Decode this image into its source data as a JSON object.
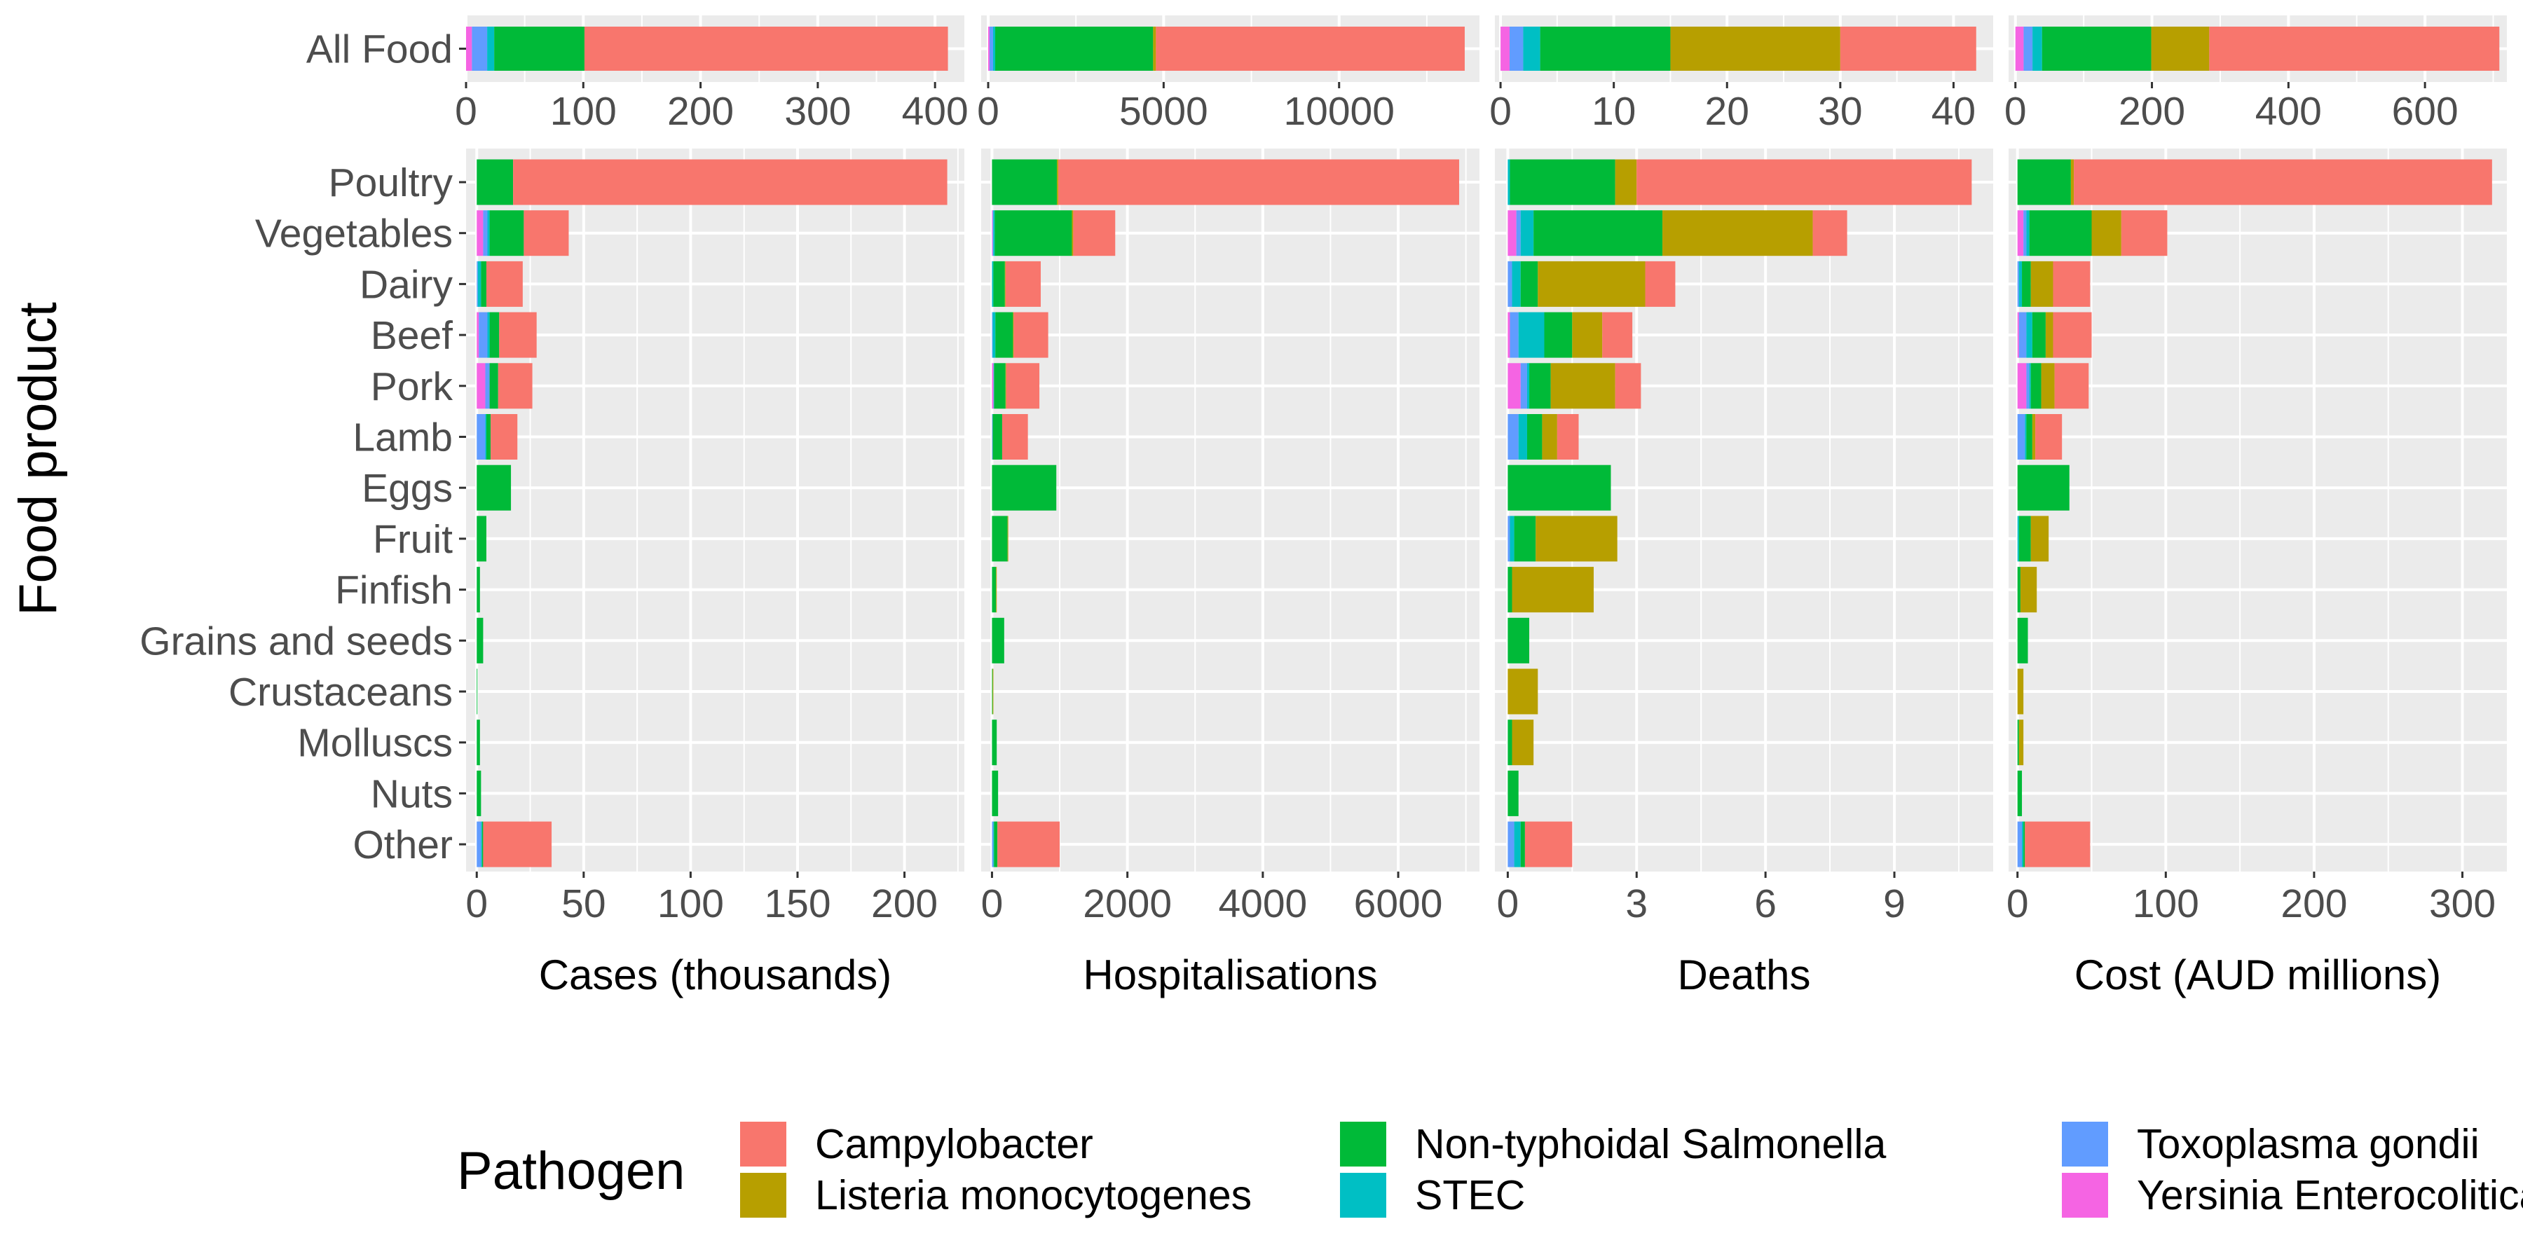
{
  "figure": {
    "y_axis_title": "Food product",
    "legend_title": "Pathogen"
  },
  "pathogens": [
    {
      "name": "Campylobacter",
      "color": "#F8766D"
    },
    {
      "name": "Listeria monocytogenes",
      "color": "#B79F00"
    },
    {
      "name": "Non-typhoidal Salmonella",
      "color": "#00BA38"
    },
    {
      "name": "STEC",
      "color": "#00BFC4"
    },
    {
      "name": "Toxoplasma gondii",
      "color": "#619CFF"
    },
    {
      "name": "Yersinia Enterocolitica",
      "color": "#F564E3"
    }
  ],
  "stack_order": [
    "Yersinia Enterocolitica",
    "Toxoplasma gondii",
    "STEC",
    "Non-typhoidal Salmonella",
    "Listeria monocytogenes",
    "Campylobacter"
  ],
  "legend_layout": [
    [
      "Campylobacter",
      "Non-typhoidal Salmonella",
      "Toxoplasma gondii"
    ],
    [
      "Listeria monocytogenes",
      "STEC",
      "Yersinia Enterocolitica"
    ]
  ],
  "chart_data": {
    "type": "bar",
    "orientation": "horizontal",
    "stacked": true,
    "grid": true,
    "legend_position": "bottom",
    "top_row_category": "All Food",
    "categories": [
      "Poultry",
      "Vegetables",
      "Dairy",
      "Beef",
      "Pork",
      "Lamb",
      "Eggs",
      "Fruit",
      "Finfish",
      "Grains and seeds",
      "Crustaceans",
      "Molluscs",
      "Nuts",
      "Other"
    ],
    "panels": [
      {
        "xlabel": "Cases (thousands)",
        "all_food": {
          "xlim": [
            0,
            425
          ],
          "ticks": [
            0,
            100,
            200,
            300,
            400
          ],
          "values": {
            "Yersinia Enterocolitica": 5,
            "Toxoplasma gondii": 13,
            "STEC": 6,
            "Non-typhoidal Salmonella": 77,
            "Listeria monocytogenes": 0,
            "Campylobacter": 310
          }
        },
        "products": {
          "xlim": [
            -5,
            228
          ],
          "ticks": [
            0,
            50,
            100,
            150,
            200
          ],
          "values": {
            "Poultry": {
              "Yersinia Enterocolitica": 0,
              "Toxoplasma gondii": 0,
              "STEC": 0,
              "Non-typhoidal Salmonella": 17,
              "Listeria monocytogenes": 0,
              "Campylobacter": 203
            },
            "Vegetables": {
              "Yersinia Enterocolitica": 3,
              "Toxoplasma gondii": 2,
              "STEC": 1,
              "Non-typhoidal Salmonella": 16,
              "Listeria monocytogenes": 0,
              "Campylobacter": 21
            },
            "Dairy": {
              "Yersinia Enterocolitica": 0,
              "Toxoplasma gondii": 0.5,
              "STEC": 1.5,
              "Non-typhoidal Salmonella": 2.5,
              "Listeria monocytogenes": 0,
              "Campylobacter": 17
            },
            "Beef": {
              "Yersinia Enterocolitica": 1,
              "Toxoplasma gondii": 4,
              "STEC": 1,
              "Non-typhoidal Salmonella": 4.5,
              "Listeria monocytogenes": 0,
              "Campylobacter": 17.5
            },
            "Pork": {
              "Yersinia Enterocolitica": 4,
              "Toxoplasma gondii": 2,
              "STEC": 0,
              "Non-typhoidal Salmonella": 4,
              "Listeria monocytogenes": 0,
              "Campylobacter": 16
            },
            "Lamb": {
              "Yersinia Enterocolitica": 0,
              "Toxoplasma gondii": 4,
              "STEC": 0.5,
              "Non-typhoidal Salmonella": 2,
              "Listeria monocytogenes": 0,
              "Campylobacter": 12.5
            },
            "Eggs": {
              "Yersinia Enterocolitica": 0,
              "Toxoplasma gondii": 0,
              "STEC": 0,
              "Non-typhoidal Salmonella": 16,
              "Listeria monocytogenes": 0,
              "Campylobacter": 0
            },
            "Fruit": {
              "Yersinia Enterocolitica": 0,
              "Toxoplasma gondii": 0,
              "STEC": 0,
              "Non-typhoidal Salmonella": 4.5,
              "Listeria monocytogenes": 0,
              "Campylobacter": 0
            },
            "Finfish": {
              "Yersinia Enterocolitica": 0,
              "Toxoplasma gondii": 0,
              "STEC": 0,
              "Non-typhoidal Salmonella": 1.5,
              "Listeria monocytogenes": 0,
              "Campylobacter": 0
            },
            "Grains and seeds": {
              "Yersinia Enterocolitica": 0,
              "Toxoplasma gondii": 0,
              "STEC": 0,
              "Non-typhoidal Salmonella": 3,
              "Listeria monocytogenes": 0,
              "Campylobacter": 0
            },
            "Crustaceans": {
              "Yersinia Enterocolitica": 0,
              "Toxoplasma gondii": 0,
              "STEC": 0,
              "Non-typhoidal Salmonella": 0.3,
              "Listeria monocytogenes": 0,
              "Campylobacter": 0
            },
            "Molluscs": {
              "Yersinia Enterocolitica": 0,
              "Toxoplasma gondii": 0,
              "STEC": 0,
              "Non-typhoidal Salmonella": 1.5,
              "Listeria monocytogenes": 0,
              "Campylobacter": 0
            },
            "Nuts": {
              "Yersinia Enterocolitica": 0,
              "Toxoplasma gondii": 0,
              "STEC": 0,
              "Non-typhoidal Salmonella": 2,
              "Listeria monocytogenes": 0,
              "Campylobacter": 0
            },
            "Other": {
              "Yersinia Enterocolitica": 0,
              "Toxoplasma gondii": 2,
              "STEC": 0.5,
              "Non-typhoidal Salmonella": 0.5,
              "Listeria monocytogenes": 0,
              "Campylobacter": 32
            }
          }
        }
      },
      {
        "xlabel": "Hospitalisations",
        "all_food": {
          "xlim": [
            -200,
            14000
          ],
          "ticks": [
            0,
            5000,
            10000
          ],
          "values": {
            "Yersinia Enterocolitica": 40,
            "Toxoplasma gondii": 100,
            "STEC": 60,
            "Non-typhoidal Salmonella": 4500,
            "Listeria monocytogenes": 80,
            "Campylobacter": 8800
          }
        },
        "products": {
          "xlim": [
            -160,
            7200
          ],
          "ticks": [
            0,
            2000,
            4000,
            6000
          ],
          "values": {
            "Poultry": {
              "Yersinia Enterocolitica": 0,
              "Toxoplasma gondii": 0,
              "STEC": 0,
              "Non-typhoidal Salmonella": 960,
              "Listeria monocytogenes": 20,
              "Campylobacter": 5920
            },
            "Vegetables": {
              "Yersinia Enterocolitica": 10,
              "Toxoplasma gondii": 10,
              "STEC": 20,
              "Non-typhoidal Salmonella": 1140,
              "Listeria monocytogenes": 20,
              "Campylobacter": 620
            },
            "Dairy": {
              "Yersinia Enterocolitica": 0,
              "Toxoplasma gondii": 0,
              "STEC": 20,
              "Non-typhoidal Salmonella": 170,
              "Listeria monocytogenes": 10,
              "Campylobacter": 520
            },
            "Beef": {
              "Yersinia Enterocolitica": 0,
              "Toxoplasma gondii": 10,
              "STEC": 40,
              "Non-typhoidal Salmonella": 260,
              "Listeria monocytogenes": 10,
              "Campylobacter": 510
            },
            "Pork": {
              "Yersinia Enterocolitica": 20,
              "Toxoplasma gondii": 10,
              "STEC": 0,
              "Non-typhoidal Salmonella": 170,
              "Listeria monocytogenes": 10,
              "Campylobacter": 490
            },
            "Lamb": {
              "Yersinia Enterocolitica": 0,
              "Toxoplasma gondii": 10,
              "STEC": 0,
              "Non-typhoidal Salmonella": 140,
              "Listeria monocytogenes": 0,
              "Campylobacter": 380
            },
            "Eggs": {
              "Yersinia Enterocolitica": 0,
              "Toxoplasma gondii": 0,
              "STEC": 0,
              "Non-typhoidal Salmonella": 950,
              "Listeria monocytogenes": 0,
              "Campylobacter": 0
            },
            "Fruit": {
              "Yersinia Enterocolitica": 0,
              "Toxoplasma gondii": 0,
              "STEC": 0,
              "Non-typhoidal Salmonella": 230,
              "Listeria monocytogenes": 10,
              "Campylobacter": 0
            },
            "Finfish": {
              "Yersinia Enterocolitica": 0,
              "Toxoplasma gondii": 0,
              "STEC": 0,
              "Non-typhoidal Salmonella": 60,
              "Listeria monocytogenes": 10,
              "Campylobacter": 0
            },
            "Grains and seeds": {
              "Yersinia Enterocolitica": 0,
              "Toxoplasma gondii": 0,
              "STEC": 0,
              "Non-typhoidal Salmonella": 180,
              "Listeria monocytogenes": 0,
              "Campylobacter": 0
            },
            "Crustaceans": {
              "Yersinia Enterocolitica": 0,
              "Toxoplasma gondii": 0,
              "STEC": 0,
              "Non-typhoidal Salmonella": 10,
              "Listeria monocytogenes": 10,
              "Campylobacter": 0
            },
            "Molluscs": {
              "Yersinia Enterocolitica": 0,
              "Toxoplasma gondii": 0,
              "STEC": 0,
              "Non-typhoidal Salmonella": 70,
              "Listeria monocytogenes": 0,
              "Campylobacter": 0
            },
            "Nuts": {
              "Yersinia Enterocolitica": 0,
              "Toxoplasma gondii": 0,
              "STEC": 0,
              "Non-typhoidal Salmonella": 90,
              "Listeria monocytogenes": 0,
              "Campylobacter": 0
            },
            "Other": {
              "Yersinia Enterocolitica": 0,
              "Toxoplasma gondii": 20,
              "STEC": 10,
              "Non-typhoidal Salmonella": 50,
              "Listeria monocytogenes": 0,
              "Campylobacter": 920
            }
          }
        }
      },
      {
        "xlabel": "Deaths",
        "all_food": {
          "xlim": [
            -0.5,
            43.5
          ],
          "ticks": [
            0,
            10,
            20,
            30,
            40
          ],
          "values": {
            "Yersinia Enterocolitica": 0.8,
            "Toxoplasma gondii": 1.2,
            "STEC": 1.5,
            "Non-typhoidal Salmonella": 11.5,
            "Listeria monocytogenes": 15,
            "Campylobacter": 12
          }
        },
        "products": {
          "xlim": [
            -0.3,
            11.3
          ],
          "ticks": [
            0,
            3,
            6,
            9
          ],
          "values": {
            "Poultry": {
              "Yersinia Enterocolitica": 0,
              "Toxoplasma gondii": 0,
              "STEC": 0.05,
              "Non-typhoidal Salmonella": 2.45,
              "Listeria monocytogenes": 0.5,
              "Campylobacter": 7.8
            },
            "Vegetables": {
              "Yersinia Enterocolitica": 0.2,
              "Toxoplasma gondii": 0.1,
              "STEC": 0.3,
              "Non-typhoidal Salmonella": 3,
              "Listeria monocytogenes": 3.5,
              "Campylobacter": 0.8
            },
            "Dairy": {
              "Yersinia Enterocolitica": 0,
              "Toxoplasma gondii": 0.1,
              "STEC": 0.2,
              "Non-typhoidal Salmonella": 0.4,
              "Listeria monocytogenes": 2.5,
              "Campylobacter": 0.7
            },
            "Beef": {
              "Yersinia Enterocolitica": 0.05,
              "Toxoplasma gondii": 0.2,
              "STEC": 0.6,
              "Non-typhoidal Salmonella": 0.65,
              "Listeria monocytogenes": 0.7,
              "Campylobacter": 0.7
            },
            "Pork": {
              "Yersinia Enterocolitica": 0.3,
              "Toxoplasma gondii": 0.15,
              "STEC": 0.05,
              "Non-typhoidal Salmonella": 0.5,
              "Listeria monocytogenes": 1.5,
              "Campylobacter": 0.6
            },
            "Lamb": {
              "Yersinia Enterocolitica": 0,
              "Toxoplasma gondii": 0.25,
              "STEC": 0.2,
              "Non-typhoidal Salmonella": 0.35,
              "Listeria monocytogenes": 0.35,
              "Campylobacter": 0.5
            },
            "Eggs": {
              "Yersinia Enterocolitica": 0,
              "Toxoplasma gondii": 0,
              "STEC": 0,
              "Non-typhoidal Salmonella": 2.4,
              "Listeria monocytogenes": 0,
              "Campylobacter": 0
            },
            "Fruit": {
              "Yersinia Enterocolitica": 0,
              "Toxoplasma gondii": 0.05,
              "STEC": 0.1,
              "Non-typhoidal Salmonella": 0.5,
              "Listeria monocytogenes": 1.9,
              "Campylobacter": 0
            },
            "Finfish": {
              "Yersinia Enterocolitica": 0,
              "Toxoplasma gondii": 0,
              "STEC": 0,
              "Non-typhoidal Salmonella": 0.1,
              "Listeria monocytogenes": 1.9,
              "Campylobacter": 0
            },
            "Grains and seeds": {
              "Yersinia Enterocolitica": 0,
              "Toxoplasma gondii": 0,
              "STEC": 0,
              "Non-typhoidal Salmonella": 0.5,
              "Listeria monocytogenes": 0,
              "Campylobacter": 0
            },
            "Crustaceans": {
              "Yersinia Enterocolitica": 0,
              "Toxoplasma gondii": 0,
              "STEC": 0,
              "Non-typhoidal Salmonella": 0,
              "Listeria monocytogenes": 0.7,
              "Campylobacter": 0
            },
            "Molluscs": {
              "Yersinia Enterocolitica": 0,
              "Toxoplasma gondii": 0,
              "STEC": 0,
              "Non-typhoidal Salmonella": 0.1,
              "Listeria monocytogenes": 0.5,
              "Campylobacter": 0
            },
            "Nuts": {
              "Yersinia Enterocolitica": 0,
              "Toxoplasma gondii": 0,
              "STEC": 0,
              "Non-typhoidal Salmonella": 0.25,
              "Listeria monocytogenes": 0,
              "Campylobacter": 0
            },
            "Other": {
              "Yersinia Enterocolitica": 0,
              "Toxoplasma gondii": 0.15,
              "STEC": 0.15,
              "Non-typhoidal Salmonella": 0.1,
              "Listeria monocytogenes": 0,
              "Campylobacter": 1.1
            }
          }
        }
      },
      {
        "xlabel": "Cost (AUD millions)",
        "all_food": {
          "xlim": [
            -10,
            720
          ],
          "ticks": [
            0,
            200,
            400,
            600
          ],
          "values": {
            "Yersinia Enterocolitica": 12,
            "Toxoplasma gondii": 13,
            "STEC": 14,
            "Non-typhoidal Salmonella": 160,
            "Listeria monocytogenes": 85,
            "Campylobacter": 425
          }
        },
        "products": {
          "xlim": [
            -6,
            330
          ],
          "ticks": [
            0,
            100,
            200,
            300
          ],
          "values": {
            "Poultry": {
              "Yersinia Enterocolitica": 0,
              "Toxoplasma gondii": 0,
              "STEC": 0,
              "Non-typhoidal Salmonella": 36,
              "Listeria monocytogenes": 2,
              "Campylobacter": 282
            },
            "Vegetables": {
              "Yersinia Enterocolitica": 4,
              "Toxoplasma gondii": 2,
              "STEC": 2,
              "Non-typhoidal Salmonella": 42,
              "Listeria monocytogenes": 20,
              "Campylobacter": 31
            },
            "Dairy": {
              "Yersinia Enterocolitica": 0,
              "Toxoplasma gondii": 1,
              "STEC": 2,
              "Non-typhoidal Salmonella": 6,
              "Listeria monocytogenes": 15,
              "Campylobacter": 25
            },
            "Beef": {
              "Yersinia Enterocolitica": 1,
              "Toxoplasma gondii": 5,
              "STEC": 4,
              "Non-typhoidal Salmonella": 9,
              "Listeria monocytogenes": 5,
              "Campylobacter": 26
            },
            "Pork": {
              "Yersinia Enterocolitica": 6,
              "Toxoplasma gondii": 2,
              "STEC": 1,
              "Non-typhoidal Salmonella": 7,
              "Listeria monocytogenes": 9,
              "Campylobacter": 23
            },
            "Lamb": {
              "Yersinia Enterocolitica": 0,
              "Toxoplasma gondii": 5,
              "STEC": 1,
              "Non-typhoidal Salmonella": 4,
              "Listeria monocytogenes": 2,
              "Campylobacter": 18
            },
            "Eggs": {
              "Yersinia Enterocolitica": 0,
              "Toxoplasma gondii": 0,
              "STEC": 0,
              "Non-typhoidal Salmonella": 35,
              "Listeria monocytogenes": 0,
              "Campylobacter": 0
            },
            "Fruit": {
              "Yersinia Enterocolitica": 0,
              "Toxoplasma gondii": 0,
              "STEC": 1,
              "Non-typhoidal Salmonella": 8,
              "Listeria monocytogenes": 12,
              "Campylobacter": 0
            },
            "Finfish": {
              "Yersinia Enterocolitica": 0,
              "Toxoplasma gondii": 0,
              "STEC": 0,
              "Non-typhoidal Salmonella": 2,
              "Listeria monocytogenes": 11,
              "Campylobacter": 0
            },
            "Grains and seeds": {
              "Yersinia Enterocolitica": 0,
              "Toxoplasma gondii": 0,
              "STEC": 0,
              "Non-typhoidal Salmonella": 7,
              "Listeria monocytogenes": 0,
              "Campylobacter": 0
            },
            "Crustaceans": {
              "Yersinia Enterocolitica": 0,
              "Toxoplasma gondii": 0,
              "STEC": 0,
              "Non-typhoidal Salmonella": 0,
              "Listeria monocytogenes": 4,
              "Campylobacter": 0
            },
            "Molluscs": {
              "Yersinia Enterocolitica": 0,
              "Toxoplasma gondii": 0,
              "STEC": 0,
              "Non-typhoidal Salmonella": 1,
              "Listeria monocytogenes": 3,
              "Campylobacter": 0
            },
            "Nuts": {
              "Yersinia Enterocolitica": 0,
              "Toxoplasma gondii": 0,
              "STEC": 0,
              "Non-typhoidal Salmonella": 3,
              "Listeria monocytogenes": 0,
              "Campylobacter": 0
            },
            "Other": {
              "Yersinia Enterocolitica": 0,
              "Toxoplasma gondii": 3,
              "STEC": 1,
              "Non-typhoidal Salmonella": 1,
              "Listeria monocytogenes": 0,
              "Campylobacter": 44
            }
          }
        }
      }
    ]
  }
}
